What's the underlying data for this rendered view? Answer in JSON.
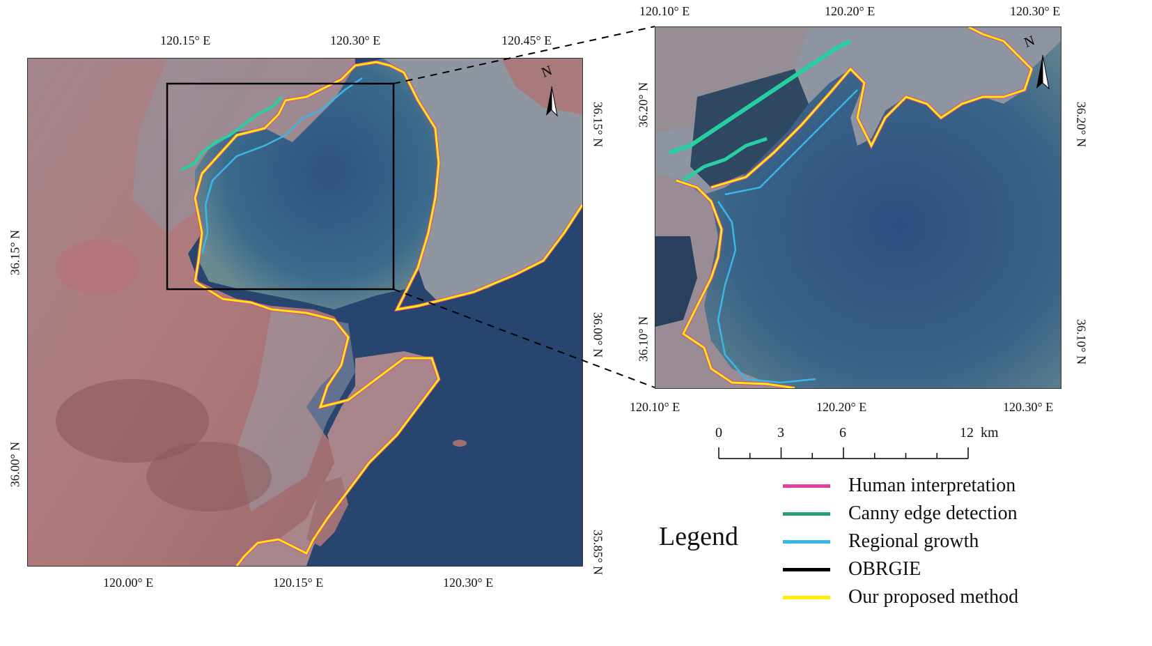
{
  "left_map": {
    "top_ticks": [
      "120.15° E",
      "120.30° E",
      "120.45° E"
    ],
    "bottom_ticks": [
      "120.00° E",
      "120.15° E",
      "120.30° E"
    ],
    "left_ticks": [
      "36.15° N",
      "36.00° N"
    ],
    "right_ticks": [
      "36.15° N",
      "36.00° N",
      "35.85° N"
    ],
    "north_label": "N"
  },
  "right_map": {
    "top_ticks": [
      "120.10° E",
      "120.20° E",
      "120.30° E"
    ],
    "bottom_ticks": [
      "120.10° E",
      "120.20° E",
      "120.30° E"
    ],
    "left_ticks": [
      "36.20° N",
      "36.10° N"
    ],
    "right_ticks": [
      "36.20° N",
      "36.10° N"
    ],
    "north_label": "N"
  },
  "scale_bar": {
    "labels": [
      "0",
      "3",
      "6",
      "12"
    ],
    "unit": "km"
  },
  "legend": {
    "title": "Legend",
    "items": [
      {
        "label": "Human interpretation",
        "color": "#e0409a"
      },
      {
        "label": "Canny edge detection",
        "color": "#2a9e78"
      },
      {
        "label": "Regional growth",
        "color": "#37b8e8"
      },
      {
        "label": "OBRGIE",
        "color": "#000000"
      },
      {
        "label": "Our proposed method",
        "color": "#ffee00"
      }
    ]
  },
  "colors": {
    "sea": "#27456e",
    "bay": "#34588a",
    "land": "#a8787a",
    "urban": "#9ea3ad"
  }
}
